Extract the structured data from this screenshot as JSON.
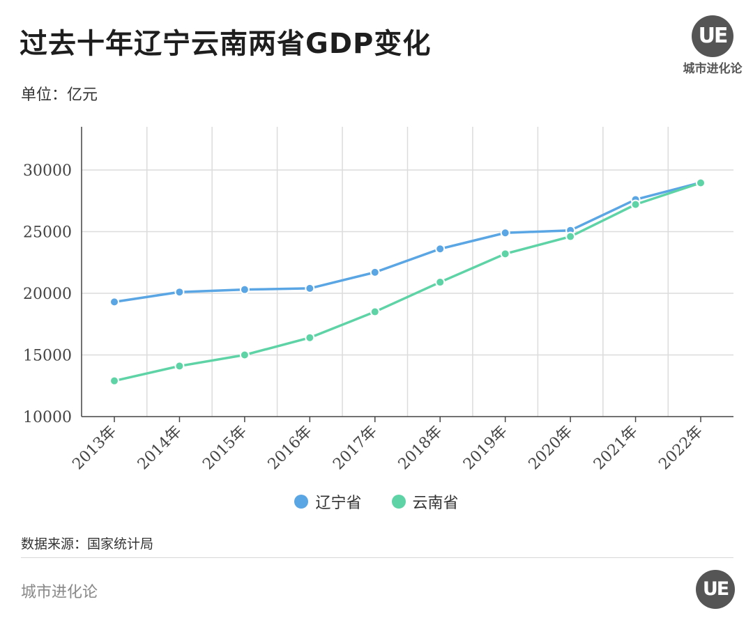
{
  "header": {
    "title": "过去十年辽宁云南两省GDP变化",
    "unit": "单位：亿元",
    "logo_mark": "UE",
    "logo_text": "城市进化论"
  },
  "colors": {
    "liaoning": "#5aa5e3",
    "yunnan": "#5ed3a6",
    "grid": "#dcdcdc",
    "axis": "#444444"
  },
  "chart_data": {
    "type": "line",
    "x": [
      "2013年",
      "2014年",
      "2015年",
      "2016年",
      "2017年",
      "2018年",
      "2019年",
      "2020年",
      "2021年",
      "2022年"
    ],
    "series": [
      {
        "name": "辽宁省",
        "values": [
          19300,
          20100,
          20300,
          20400,
          21700,
          23600,
          24900,
          25100,
          27600,
          28975
        ]
      },
      {
        "name": "云南省",
        "values": [
          12900,
          14100,
          15000,
          16400,
          18500,
          20900,
          23200,
          24600,
          27200,
          28954
        ]
      }
    ],
    "ylim": [
      10000,
      33500
    ],
    "yticks": [
      10000,
      15000,
      20000,
      25000,
      30000
    ],
    "grid": true,
    "legend": "bottom-center"
  },
  "source": "数据来源：国家统计局",
  "footer": {
    "brand": "城市进化论",
    "logo_mark": "UE"
  }
}
